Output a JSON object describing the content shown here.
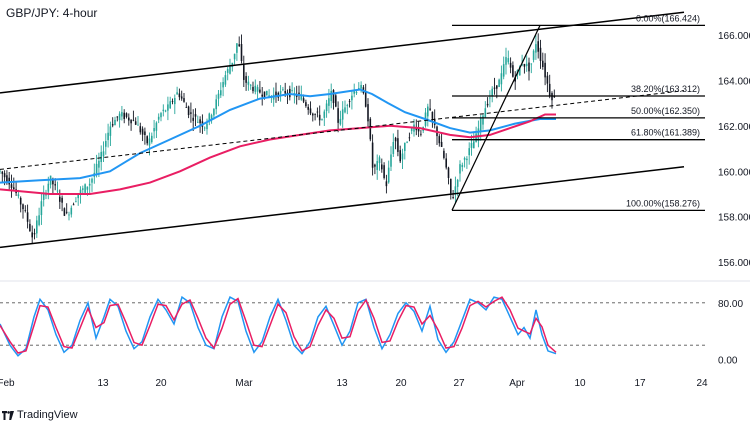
{
  "header": {
    "title": "GBP/JPY: 4-hour"
  },
  "footer": {
    "brand": "TradingView",
    "logo_icon": "tradingview-logo-icon"
  },
  "colors": {
    "up": "#26a69a",
    "down": "#131722",
    "sma_fast": "#2196f3",
    "sma_slow": "#e91e63",
    "stoch_k": "#2196f3",
    "stoch_d": "#e91e63",
    "line": "#000000",
    "grid_dash": "#555555"
  },
  "chart_data": [
    {
      "type": "candlestick",
      "title": "GBP/JPY: 4-hour",
      "x_tick_labels": [
        "Feb",
        "13",
        "20",
        "Mar",
        "13",
        "20",
        "27",
        "Apr",
        "10",
        "17",
        "24"
      ],
      "y_tick_labels": [
        "156.000",
        "158.000",
        "160.000",
        "162.000",
        "164.000",
        "166.000"
      ],
      "ylim": [
        155.3,
        167.1
      ],
      "price_path": [
        [
          0,
          160.0
        ],
        [
          12,
          159.4
        ],
        [
          25,
          158.2
        ],
        [
          33,
          157.0
        ],
        [
          42,
          158.7
        ],
        [
          50,
          159.7
        ],
        [
          58,
          159.0
        ],
        [
          66,
          158.0
        ],
        [
          78,
          159.0
        ],
        [
          90,
          159.5
        ],
        [
          100,
          160.5
        ],
        [
          110,
          162.0
        ],
        [
          120,
          162.5
        ],
        [
          135,
          162.2
        ],
        [
          148,
          161.2
        ],
        [
          160,
          162.5
        ],
        [
          168,
          162.8
        ],
        [
          178,
          163.5
        ],
        [
          190,
          162.5
        ],
        [
          205,
          162.0
        ],
        [
          215,
          162.9
        ],
        [
          225,
          164.2
        ],
        [
          232,
          164.8
        ],
        [
          238,
          165.8
        ],
        [
          244,
          164.0
        ],
        [
          255,
          163.6
        ],
        [
          270,
          163.3
        ],
        [
          285,
          163.5
        ],
        [
          300,
          163.3
        ],
        [
          312,
          162.6
        ],
        [
          322,
          162.3
        ],
        [
          332,
          163.5
        ],
        [
          338,
          162.2
        ],
        [
          345,
          162.8
        ],
        [
          350,
          163.3
        ],
        [
          360,
          163.8
        ],
        [
          367,
          162.8
        ],
        [
          373,
          160.0
        ],
        [
          380,
          160.5
        ],
        [
          386,
          159.3
        ],
        [
          394,
          161.6
        ],
        [
          400,
          160.5
        ],
        [
          408,
          161.5
        ],
        [
          415,
          162.1
        ],
        [
          420,
          161.6
        ],
        [
          428,
          162.8
        ],
        [
          436,
          161.8
        ],
        [
          445,
          160.4
        ],
        [
          452,
          158.7
        ],
        [
          460,
          160.2
        ],
        [
          468,
          160.8
        ],
        [
          476,
          161.5
        ],
        [
          484,
          162.7
        ],
        [
          492,
          163.5
        ],
        [
          500,
          164.0
        ],
        [
          507,
          165.1
        ],
        [
          514,
          164.0
        ],
        [
          522,
          164.8
        ],
        [
          530,
          164.5
        ],
        [
          536,
          165.7
        ],
        [
          543,
          164.6
        ],
        [
          550,
          163.4
        ],
        [
          556,
          163.1
        ]
      ],
      "moving_averages": [
        {
          "name": "",
          "color": "#2196f3",
          "points": [
            [
              0,
              159.5
            ],
            [
              40,
              159.6
            ],
            [
              80,
              159.7
            ],
            [
              110,
              160.0
            ],
            [
              140,
              160.8
            ],
            [
              170,
              161.4
            ],
            [
              200,
              162.0
            ],
            [
              230,
              162.7
            ],
            [
              260,
              163.2
            ],
            [
              290,
              163.4
            ],
            [
              310,
              163.3
            ],
            [
              330,
              163.4
            ],
            [
              345,
              163.5
            ],
            [
              360,
              163.6
            ],
            [
              372,
              163.4
            ],
            [
              388,
              163.0
            ],
            [
              405,
              162.6
            ],
            [
              425,
              162.3
            ],
            [
              450,
              161.9
            ],
            [
              470,
              161.7
            ],
            [
              490,
              161.8
            ],
            [
              515,
              162.1
            ],
            [
              540,
              162.3
            ],
            [
              556,
              162.3
            ]
          ]
        },
        {
          "name": "",
          "color": "#e91e63",
          "points": [
            [
              0,
              159.2
            ],
            [
              50,
              159.0
            ],
            [
              90,
              159.0
            ],
            [
              120,
              159.2
            ],
            [
              150,
              159.5
            ],
            [
              180,
              160.0
            ],
            [
              210,
              160.6
            ],
            [
              240,
              161.1
            ],
            [
              270,
              161.4
            ],
            [
              300,
              161.6
            ],
            [
              330,
              161.8
            ],
            [
              360,
              161.9
            ],
            [
              390,
              162.0
            ],
            [
              420,
              161.9
            ],
            [
              450,
              161.6
            ],
            [
              470,
              161.5
            ],
            [
              490,
              161.6
            ],
            [
              510,
              161.9
            ],
            [
              530,
              162.2
            ],
            [
              545,
              162.5
            ],
            [
              556,
              162.5
            ]
          ]
        }
      ],
      "fibonacci": [
        {
          "label": "0.00%(166.424)",
          "level": "0.00%",
          "value": 166.424
        },
        {
          "label": "38.20%(163.312)",
          "level": "38.20%",
          "value": 163.312
        },
        {
          "label": "50.00%(162.350)",
          "level": "50.00%",
          "value": 162.35
        },
        {
          "label": "61.80%(161.389)",
          "level": "61.80%",
          "value": 161.389
        },
        {
          "label": "100.00%(158.276)",
          "level": "100.00%",
          "value": 158.276
        }
      ]
    },
    {
      "type": "line",
      "title": "",
      "indicator": "stochastic",
      "y_tick_labels": [
        "0.00",
        "80.00"
      ],
      "ylim": [
        -8,
        108
      ],
      "reference_levels": [
        20,
        80
      ],
      "series": [
        {
          "name": "",
          "color": "#2196f3",
          "points": [
            [
              0,
              50
            ],
            [
              10,
              20
            ],
            [
              18,
              5
            ],
            [
              26,
              15
            ],
            [
              34,
              60
            ],
            [
              40,
              85
            ],
            [
              48,
              70
            ],
            [
              56,
              35
            ],
            [
              64,
              10
            ],
            [
              72,
              20
            ],
            [
              80,
              55
            ],
            [
              88,
              80
            ],
            [
              96,
              30
            ],
            [
              104,
              60
            ],
            [
              110,
              85
            ],
            [
              118,
              75
            ],
            [
              126,
              40
            ],
            [
              134,
              15
            ],
            [
              142,
              25
            ],
            [
              150,
              60
            ],
            [
              158,
              85
            ],
            [
              166,
              70
            ],
            [
              174,
              50
            ],
            [
              182,
              88
            ],
            [
              190,
              80
            ],
            [
              198,
              45
            ],
            [
              206,
              20
            ],
            [
              214,
              15
            ],
            [
              222,
              60
            ],
            [
              230,
              88
            ],
            [
              238,
              82
            ],
            [
              246,
              40
            ],
            [
              254,
              10
            ],
            [
              262,
              25
            ],
            [
              270,
              60
            ],
            [
              278,
              85
            ],
            [
              286,
              55
            ],
            [
              294,
              20
            ],
            [
              302,
              8
            ],
            [
              310,
              25
            ],
            [
              318,
              60
            ],
            [
              326,
              75
            ],
            [
              334,
              48
            ],
            [
              342,
              20
            ],
            [
              350,
              40
            ],
            [
              358,
              80
            ],
            [
              366,
              85
            ],
            [
              374,
              45
            ],
            [
              382,
              15
            ],
            [
              390,
              35
            ],
            [
              398,
              65
            ],
            [
              406,
              80
            ],
            [
              414,
              68
            ],
            [
              422,
              40
            ],
            [
              430,
              75
            ],
            [
              438,
              28
            ],
            [
              446,
              10
            ],
            [
              454,
              25
            ],
            [
              462,
              55
            ],
            [
              470,
              85
            ],
            [
              478,
              80
            ],
            [
              486,
              70
            ],
            [
              494,
              88
            ],
            [
              502,
              85
            ],
            [
              510,
              60
            ],
            [
              518,
              35
            ],
            [
              524,
              45
            ],
            [
              530,
              30
            ],
            [
              536,
              70
            ],
            [
              542,
              35
            ],
            [
              548,
              12
            ],
            [
              556,
              8
            ]
          ]
        },
        {
          "name": "",
          "color": "#e91e63",
          "points": [
            [
              0,
              48
            ],
            [
              10,
              25
            ],
            [
              18,
              9
            ],
            [
              26,
              12
            ],
            [
              34,
              48
            ],
            [
              40,
              76
            ],
            [
              48,
              74
            ],
            [
              56,
              45
            ],
            [
              64,
              18
            ],
            [
              72,
              16
            ],
            [
              80,
              44
            ],
            [
              88,
              72
            ],
            [
              96,
              45
            ],
            [
              104,
              52
            ],
            [
              110,
              76
            ],
            [
              118,
              78
            ],
            [
              126,
              52
            ],
            [
              134,
              24
            ],
            [
              142,
              20
            ],
            [
              150,
              48
            ],
            [
              158,
              78
            ],
            [
              166,
              76
            ],
            [
              174,
              56
            ],
            [
              182,
              78
            ],
            [
              190,
              84
            ],
            [
              198,
              58
            ],
            [
              206,
              30
            ],
            [
              214,
              16
            ],
            [
              222,
              44
            ],
            [
              230,
              78
            ],
            [
              238,
              86
            ],
            [
              246,
              54
            ],
            [
              254,
              20
            ],
            [
              262,
              18
            ],
            [
              270,
              48
            ],
            [
              278,
              78
            ],
            [
              286,
              66
            ],
            [
              294,
              32
            ],
            [
              302,
              12
            ],
            [
              310,
              18
            ],
            [
              318,
              48
            ],
            [
              326,
              70
            ],
            [
              334,
              58
            ],
            [
              342,
              30
            ],
            [
              350,
              32
            ],
            [
              358,
              68
            ],
            [
              366,
              84
            ],
            [
              374,
              58
            ],
            [
              382,
              24
            ],
            [
              390,
              26
            ],
            [
              398,
              54
            ],
            [
              406,
              76
            ],
            [
              414,
              74
            ],
            [
              422,
              50
            ],
            [
              430,
              62
            ],
            [
              438,
              42
            ],
            [
              446,
              16
            ],
            [
              454,
              18
            ],
            [
              462,
              44
            ],
            [
              470,
              76
            ],
            [
              478,
              82
            ],
            [
              486,
              74
            ],
            [
              494,
              82
            ],
            [
              502,
              88
            ],
            [
              510,
              70
            ],
            [
              518,
              44
            ],
            [
              524,
              40
            ],
            [
              530,
              36
            ],
            [
              536,
              58
            ],
            [
              542,
              46
            ],
            [
              548,
              20
            ],
            [
              556,
              10
            ]
          ]
        }
      ]
    }
  ]
}
